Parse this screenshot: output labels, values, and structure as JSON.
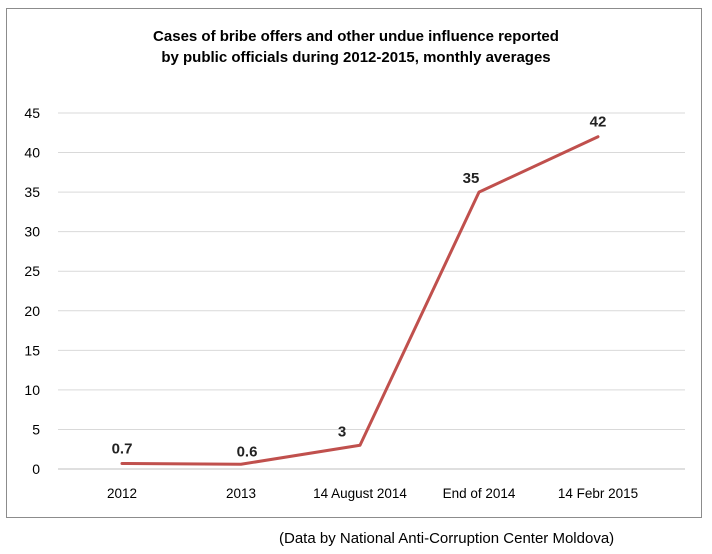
{
  "chart_data": {
    "type": "line",
    "title_lines": [
      "Cases of bribe offers and other undue influence reported",
      "by public officials during 2012-2015, monthly averages"
    ],
    "categories": [
      "2012",
      "2013",
      "14 August 2014",
      "End of 2014",
      "14 Febr 2015"
    ],
    "series": [
      {
        "values": [
          0.7,
          0.6,
          3,
          35,
          42
        ],
        "labels": [
          "0.7",
          "0.6",
          "3",
          "35",
          "42"
        ],
        "color": "#c0504d"
      }
    ],
    "ylim": [
      0,
      45
    ],
    "yticks": [
      0,
      5,
      10,
      15,
      20,
      25,
      30,
      35,
      40,
      45
    ],
    "grid": true,
    "legend": "none",
    "gridline_color": "#d9d9d9"
  },
  "footer": {
    "source_note": "(Data by National Anti-Corruption Center Moldova)"
  }
}
